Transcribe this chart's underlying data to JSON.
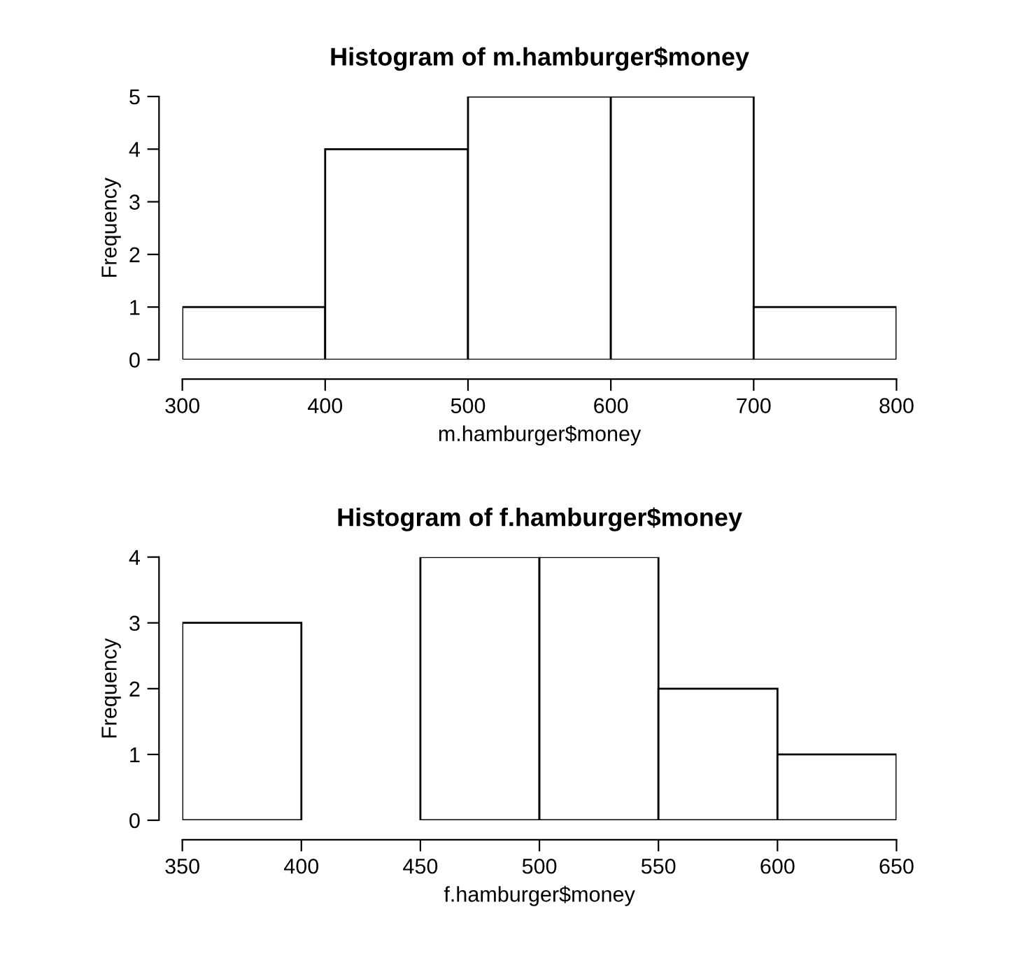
{
  "chart_data": [
    {
      "type": "histogram",
      "title": "Histogram of m.hamburger$money",
      "xlabel": "m.hamburger$money",
      "ylabel": "Frequency",
      "bins": [
        300,
        400,
        500,
        600,
        700,
        800
      ],
      "values": [
        1,
        4,
        5,
        5,
        1
      ],
      "color": "#ffffff",
      "xlim": [
        300,
        800
      ],
      "ylim": [
        0,
        5
      ],
      "xticks": [
        300,
        400,
        500,
        600,
        700,
        800
      ],
      "yticks": [
        0,
        1,
        2,
        3,
        4,
        5
      ],
      "grid": false
    },
    {
      "type": "histogram",
      "title": "Histogram of f.hamburger$money",
      "xlabel": "f.hamburger$money",
      "ylabel": "Frequency",
      "bins": [
        350,
        400,
        450,
        500,
        550,
        600,
        650
      ],
      "values": [
        3,
        0,
        4,
        4,
        2,
        1
      ],
      "color": "#ffffff",
      "xlim": [
        350,
        650
      ],
      "ylim": [
        0,
        4
      ],
      "xticks": [
        350,
        400,
        450,
        500,
        550,
        600,
        650
      ],
      "yticks": [
        0,
        1,
        2,
        3,
        4
      ],
      "grid": false
    }
  ]
}
